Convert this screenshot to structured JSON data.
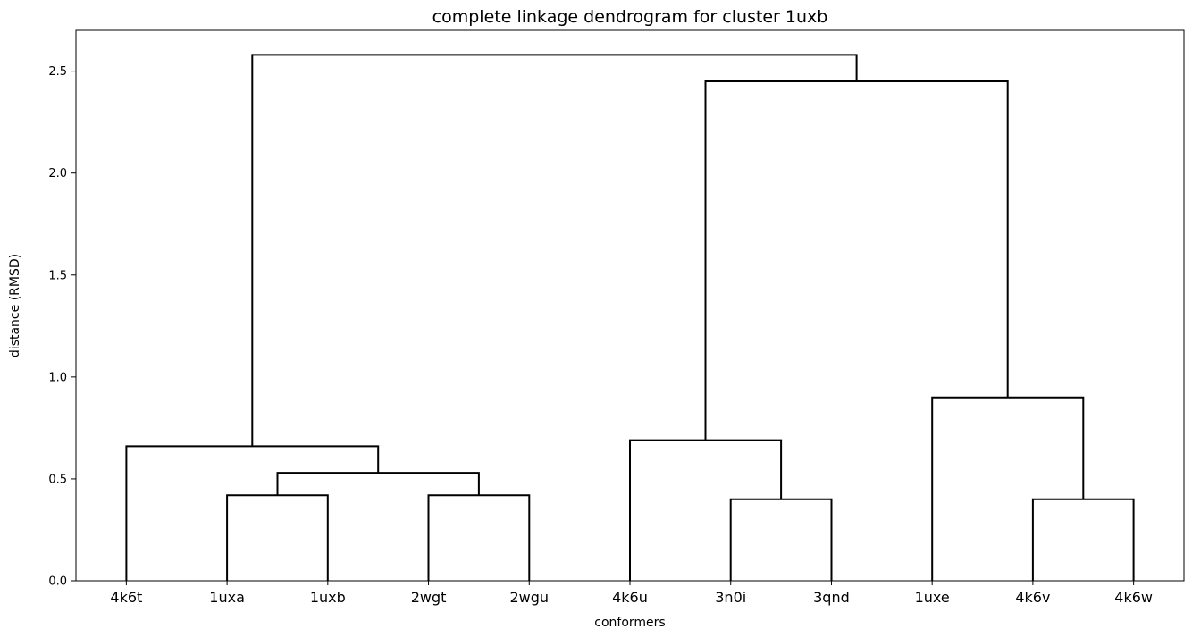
{
  "chart_data": {
    "type": "dendrogram",
    "title": "complete linkage dendrogram for cluster 1uxb",
    "xlabel": "conformers",
    "ylabel": "distance (RMSD)",
    "leaves": [
      "4k6t",
      "1uxa",
      "1uxb",
      "2wgt",
      "2wgu",
      "4k6u",
      "3n0i",
      "3qnd",
      "1uxe",
      "4k6v",
      "4k6w"
    ],
    "yticks": [
      0.0,
      0.5,
      1.0,
      1.5,
      2.0,
      2.5
    ],
    "ytick_labels": [
      "0.0",
      "0.5",
      "1.0",
      "1.5",
      "2.0",
      "2.5"
    ],
    "ylim": [
      0,
      2.7
    ],
    "merges": [
      {
        "left": "1uxa",
        "right": "1uxb",
        "height": 0.42
      },
      {
        "left": "2wgt",
        "right": "2wgu",
        "height": 0.42
      },
      {
        "left": "3n0i",
        "right": "3qnd",
        "height": 0.4
      },
      {
        "left": "4k6v",
        "right": "4k6w",
        "height": 0.4
      },
      {
        "left": "(1uxa,1uxb)",
        "right": "(2wgt,2wgu)",
        "height": 0.53
      },
      {
        "left": "4k6t",
        "right": "((1uxa,1uxb),(2wgt,2wgu))",
        "height": 0.66
      },
      {
        "left": "4k6u",
        "right": "(3n0i,3qnd)",
        "height": 0.69
      },
      {
        "left": "1uxe",
        "right": "(4k6v,4k6w)",
        "height": 0.9
      },
      {
        "left": "(4k6u,(3n0i,3qnd))",
        "right": "(1uxe,(4k6v,4k6w))",
        "height": 2.45
      },
      {
        "left": "(4k6t,...)",
        "right": "((4k6u,...),(1uxe,...))",
        "height": 2.58
      }
    ],
    "links": [
      {
        "name": "link-1uxa-1uxb",
        "xs": [
          1,
          1,
          2,
          2
        ],
        "ys": [
          0.0,
          0.42,
          0.42,
          0.0
        ]
      },
      {
        "name": "link-2wgt-2wgu",
        "xs": [
          3,
          3,
          4,
          4
        ],
        "ys": [
          0.0,
          0.42,
          0.42,
          0.0
        ]
      },
      {
        "name": "link-1uxab-2wgtu",
        "xs": [
          1.5,
          1.5,
          3.5,
          3.5
        ],
        "ys": [
          0.42,
          0.53,
          0.53,
          0.42
        ]
      },
      {
        "name": "link-4k6t-group",
        "xs": [
          0,
          0,
          2.5,
          2.5
        ],
        "ys": [
          0.0,
          0.66,
          0.66,
          0.53
        ]
      },
      {
        "name": "link-3n0i-3qnd",
        "xs": [
          6,
          6,
          7,
          7
        ],
        "ys": [
          0.0,
          0.4,
          0.4,
          0.0
        ]
      },
      {
        "name": "link-4k6u-group",
        "xs": [
          5,
          5,
          6.5,
          6.5
        ],
        "ys": [
          0.0,
          0.69,
          0.69,
          0.4
        ]
      },
      {
        "name": "link-4k6v-4k6w",
        "xs": [
          9,
          9,
          10,
          10
        ],
        "ys": [
          0.0,
          0.4,
          0.4,
          0.0
        ]
      },
      {
        "name": "link-1uxe-group",
        "xs": [
          8,
          8,
          9.5,
          9.5
        ],
        "ys": [
          0.0,
          0.9,
          0.9,
          0.4
        ]
      },
      {
        "name": "link-right-clusters",
        "xs": [
          5.75,
          5.75,
          8.75,
          8.75
        ],
        "ys": [
          0.69,
          2.45,
          2.45,
          0.9
        ]
      },
      {
        "name": "link-root",
        "xs": [
          1.25,
          1.25,
          7.25,
          7.25
        ],
        "ys": [
          0.66,
          2.58,
          2.58,
          2.45
        ]
      }
    ]
  }
}
